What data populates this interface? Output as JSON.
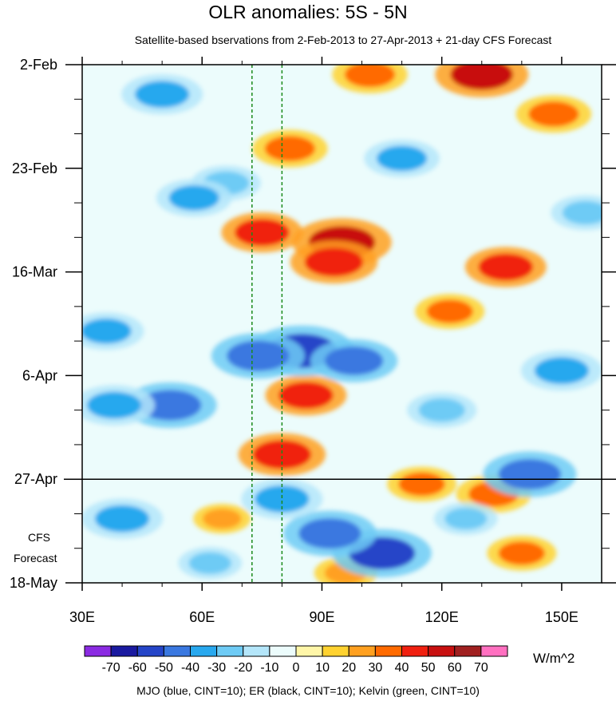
{
  "chart_data": {
    "type": "heatmap",
    "title": "OLR anomalies: 5S - 5N",
    "subtitle": "Satellite-based bservations from 2-Feb-2013 to 27-Apr-2013 + 21-day CFS Forecast",
    "xlabel": "",
    "ylabel": "",
    "x_ticks": [
      "30E",
      "60E",
      "90E",
      "120E",
      "150E"
    ],
    "x_tick_values": [
      30,
      60,
      90,
      120,
      150
    ],
    "xlim": [
      30,
      160
    ],
    "y_ticks": [
      "2-Feb",
      "23-Feb",
      "16-Mar",
      "6-Apr",
      "27-Apr",
      "18-May"
    ],
    "y_tick_values": [
      "2013-02-02",
      "2013-02-23",
      "2013-03-16",
      "2013-04-06",
      "2013-04-27",
      "2013-05-18"
    ],
    "ylim": [
      "2013-02-02",
      "2013-05-18"
    ],
    "forecast_start": "2013-04-27",
    "forecast_label": [
      "CFS",
      "Forecast"
    ],
    "reference_lines_lon": [
      72.5,
      80
    ],
    "colorbar": {
      "levels": [
        -70,
        -60,
        -50,
        -40,
        -30,
        -20,
        -10,
        0,
        10,
        20,
        30,
        40,
        50,
        60,
        70
      ],
      "labels": [
        "-70",
        "-60",
        "-50",
        "-40",
        "-30",
        "-20",
        "-10",
        "0",
        "10",
        "20",
        "30",
        "40",
        "50",
        "60",
        "70"
      ],
      "colors": [
        "#8b2be2",
        "#1a1aa0",
        "#2545c8",
        "#3a78e0",
        "#28a8ee",
        "#6ecbf5",
        "#b4e6fa",
        "#ecfcfc",
        "#fff6a8",
        "#ffd230",
        "#ffa020",
        "#ff6a00",
        "#f02010",
        "#c81010",
        "#a02020",
        "#ff70c0"
      ],
      "units": "W/m^2"
    },
    "legend_text": "MJO (blue, CINT=10); ER (black, CINT=10); Kelvin (green, CINT=10)",
    "anomaly_features": [
      {
        "lon": 95,
        "date": "2013-03-10",
        "value": 55
      },
      {
        "lon": 93,
        "date": "2013-03-14",
        "value": 45
      },
      {
        "lon": 75,
        "date": "2013-03-08",
        "value": 40
      },
      {
        "lon": 130,
        "date": "2013-02-04",
        "value": 50
      },
      {
        "lon": 82,
        "date": "2013-02-19",
        "value": 35
      },
      {
        "lon": 136,
        "date": "2013-03-15",
        "value": 40
      },
      {
        "lon": 148,
        "date": "2013-02-12",
        "value": 35
      },
      {
        "lon": 122,
        "date": "2013-03-24",
        "value": 30
      },
      {
        "lon": 86,
        "date": "2013-04-10",
        "value": 40
      },
      {
        "lon": 80,
        "date": "2013-04-22",
        "value": 45
      },
      {
        "lon": 115,
        "date": "2013-04-28",
        "value": 30
      },
      {
        "lon": 133,
        "date": "2013-04-30",
        "value": 35
      },
      {
        "lon": 140,
        "date": "2013-05-12",
        "value": 30
      },
      {
        "lon": 96,
        "date": "2013-05-16",
        "value": 25
      },
      {
        "lon": 65,
        "date": "2013-05-05",
        "value": 20
      },
      {
        "lon": 102,
        "date": "2013-02-04",
        "value": 35
      },
      {
        "lon": 85,
        "date": "2013-04-01",
        "value": -60
      },
      {
        "lon": 74,
        "date": "2013-04-02",
        "value": -50
      },
      {
        "lon": 98,
        "date": "2013-04-03",
        "value": -45
      },
      {
        "lon": 105,
        "date": "2013-05-12",
        "value": -55
      },
      {
        "lon": 92,
        "date": "2013-05-08",
        "value": -50
      },
      {
        "lon": 80,
        "date": "2013-05-01",
        "value": -40
      },
      {
        "lon": 50,
        "date": "2013-02-08",
        "value": -40
      },
      {
        "lon": 52,
        "date": "2013-04-12",
        "value": -50
      },
      {
        "lon": 38,
        "date": "2013-04-12",
        "value": -40
      },
      {
        "lon": 36,
        "date": "2013-03-28",
        "value": -35
      },
      {
        "lon": 40,
        "date": "2013-05-05",
        "value": -40
      },
      {
        "lon": 66,
        "date": "2013-02-26",
        "value": -30
      },
      {
        "lon": 58,
        "date": "2013-03-01",
        "value": -35
      },
      {
        "lon": 110,
        "date": "2013-02-21",
        "value": -35
      },
      {
        "lon": 150,
        "date": "2013-04-05",
        "value": -40
      },
      {
        "lon": 142,
        "date": "2013-04-26",
        "value": -50
      },
      {
        "lon": 120,
        "date": "2013-04-13",
        "value": -30
      },
      {
        "lon": 156,
        "date": "2013-03-04",
        "value": -30
      },
      {
        "lon": 126,
        "date": "2013-05-05",
        "value": -25
      },
      {
        "lon": 62,
        "date": "2013-05-14",
        "value": -25
      }
    ]
  }
}
